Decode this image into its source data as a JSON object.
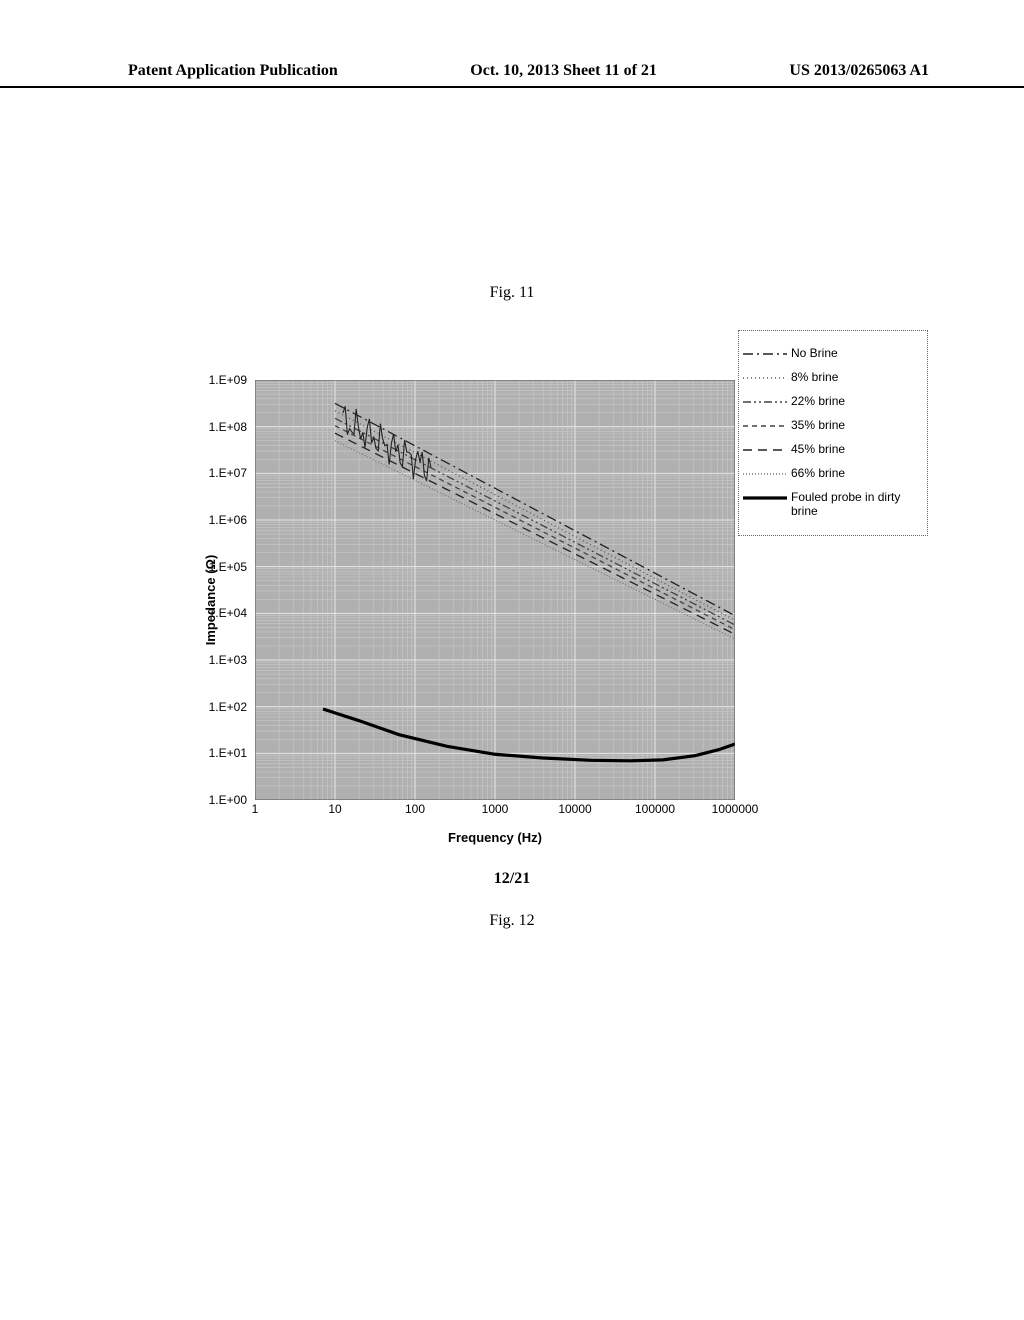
{
  "header": {
    "left": "Patent Application Publication",
    "center": "Oct. 10, 2013  Sheet 11 of 21",
    "right": "US 2013/0265063 A1"
  },
  "fig_top_label": "Fig. 11",
  "fig_bottom_label": "Fig. 12",
  "page_counter": "12/21",
  "chart": {
    "type": "line-loglog",
    "background_color": "#b0b0b0",
    "grid_color": "#e8e8e8",
    "x_axis": {
      "label": "Frequency (Hz)",
      "ticks": [
        "1",
        "10",
        "100",
        "1000",
        "10000",
        "100000",
        "1000000"
      ],
      "min_exp": 0,
      "max_exp": 6
    },
    "y_axis": {
      "label": "Impedance (Ω)",
      "ticks": [
        "1.E+00",
        "1.E+01",
        "1.E+02",
        "1.E+03",
        "1.E+04",
        "1.E+05",
        "1.E+06",
        "1.E+07",
        "1.E+08",
        "1.E+09"
      ],
      "min_exp": 0,
      "max_exp": 9
    },
    "legend": [
      {
        "label": "No Brine",
        "style": "dash-dot",
        "color": "#222"
      },
      {
        "label": "8% brine",
        "style": "fine-dot",
        "color": "#555"
      },
      {
        "label": "22% brine",
        "style": "dash-dot2",
        "color": "#444"
      },
      {
        "label": "35% brine",
        "style": "short-dash",
        "color": "#444"
      },
      {
        "label": "45% brine",
        "style": "long-dash",
        "color": "#222"
      },
      {
        "label": "66% brine",
        "style": "dots",
        "color": "#777"
      },
      {
        "label": "Fouled probe in dirty brine",
        "style": "solid-thick",
        "color": "#000"
      }
    ],
    "upper_band": {
      "start_x_exp": 1.0,
      "end_x_exp": 6.0,
      "top_start_y_exp": 8.5,
      "top_end_y_exp": 3.95,
      "bot_start_y_exp": 7.7,
      "bot_end_y_exp": 3.45
    },
    "noise_region": {
      "x_start_exp": 1.1,
      "x_end_exp": 2.2
    },
    "fouled_series": {
      "color": "#000000",
      "width": 3.2,
      "points_exp": [
        [
          0.85,
          1.95
        ],
        [
          1.3,
          1.7
        ],
        [
          1.8,
          1.4
        ],
        [
          2.4,
          1.15
        ],
        [
          3.0,
          0.98
        ],
        [
          3.6,
          0.9
        ],
        [
          4.2,
          0.85
        ],
        [
          4.7,
          0.84
        ],
        [
          5.1,
          0.86
        ],
        [
          5.5,
          0.95
        ],
        [
          5.8,
          1.08
        ],
        [
          6.0,
          1.2
        ]
      ]
    }
  }
}
